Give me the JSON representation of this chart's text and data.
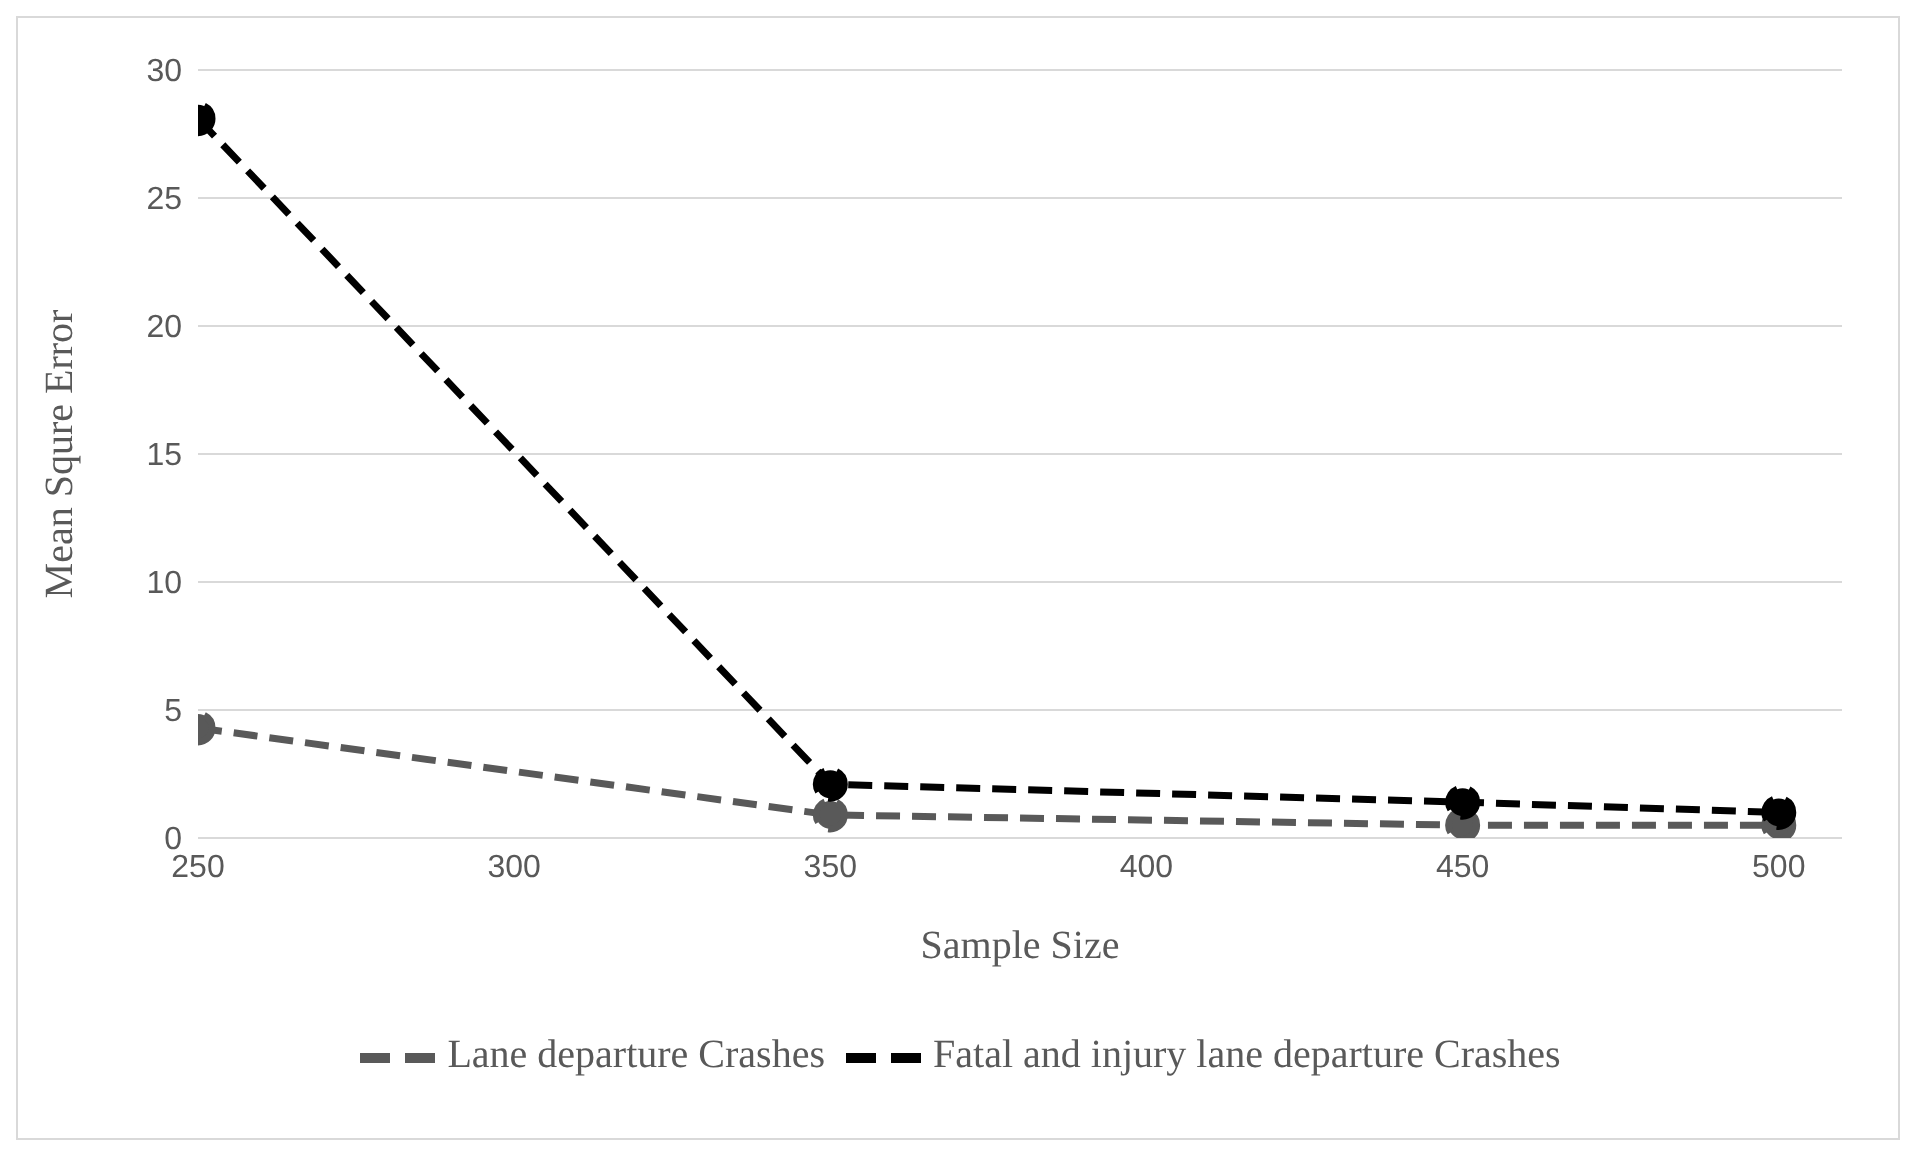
{
  "chart_data": {
    "type": "line",
    "xlabel": "Sample Size",
    "ylabel": "Mean Squre Error",
    "x": [
      250,
      350,
      450,
      500
    ],
    "series": [
      {
        "name": "Lane departure Crashes",
        "color": "#595959",
        "values": [
          4.3,
          0.9,
          0.5,
          0.5
        ],
        "line_style": "dashed"
      },
      {
        "name": "Fatal and injury lane departure Crashes",
        "color": "#000000",
        "values": [
          28.1,
          2.1,
          1.4,
          1.0
        ],
        "line_style": "dashed"
      }
    ],
    "xlim": [
      250,
      510
    ],
    "xticks": [
      250,
      300,
      350,
      400,
      450,
      500
    ],
    "ylim": [
      0,
      30
    ],
    "yticks": [
      0,
      5,
      10,
      15,
      20,
      25,
      30
    ],
    "grid": "y",
    "legend": "bottom",
    "marker": "circle"
  }
}
